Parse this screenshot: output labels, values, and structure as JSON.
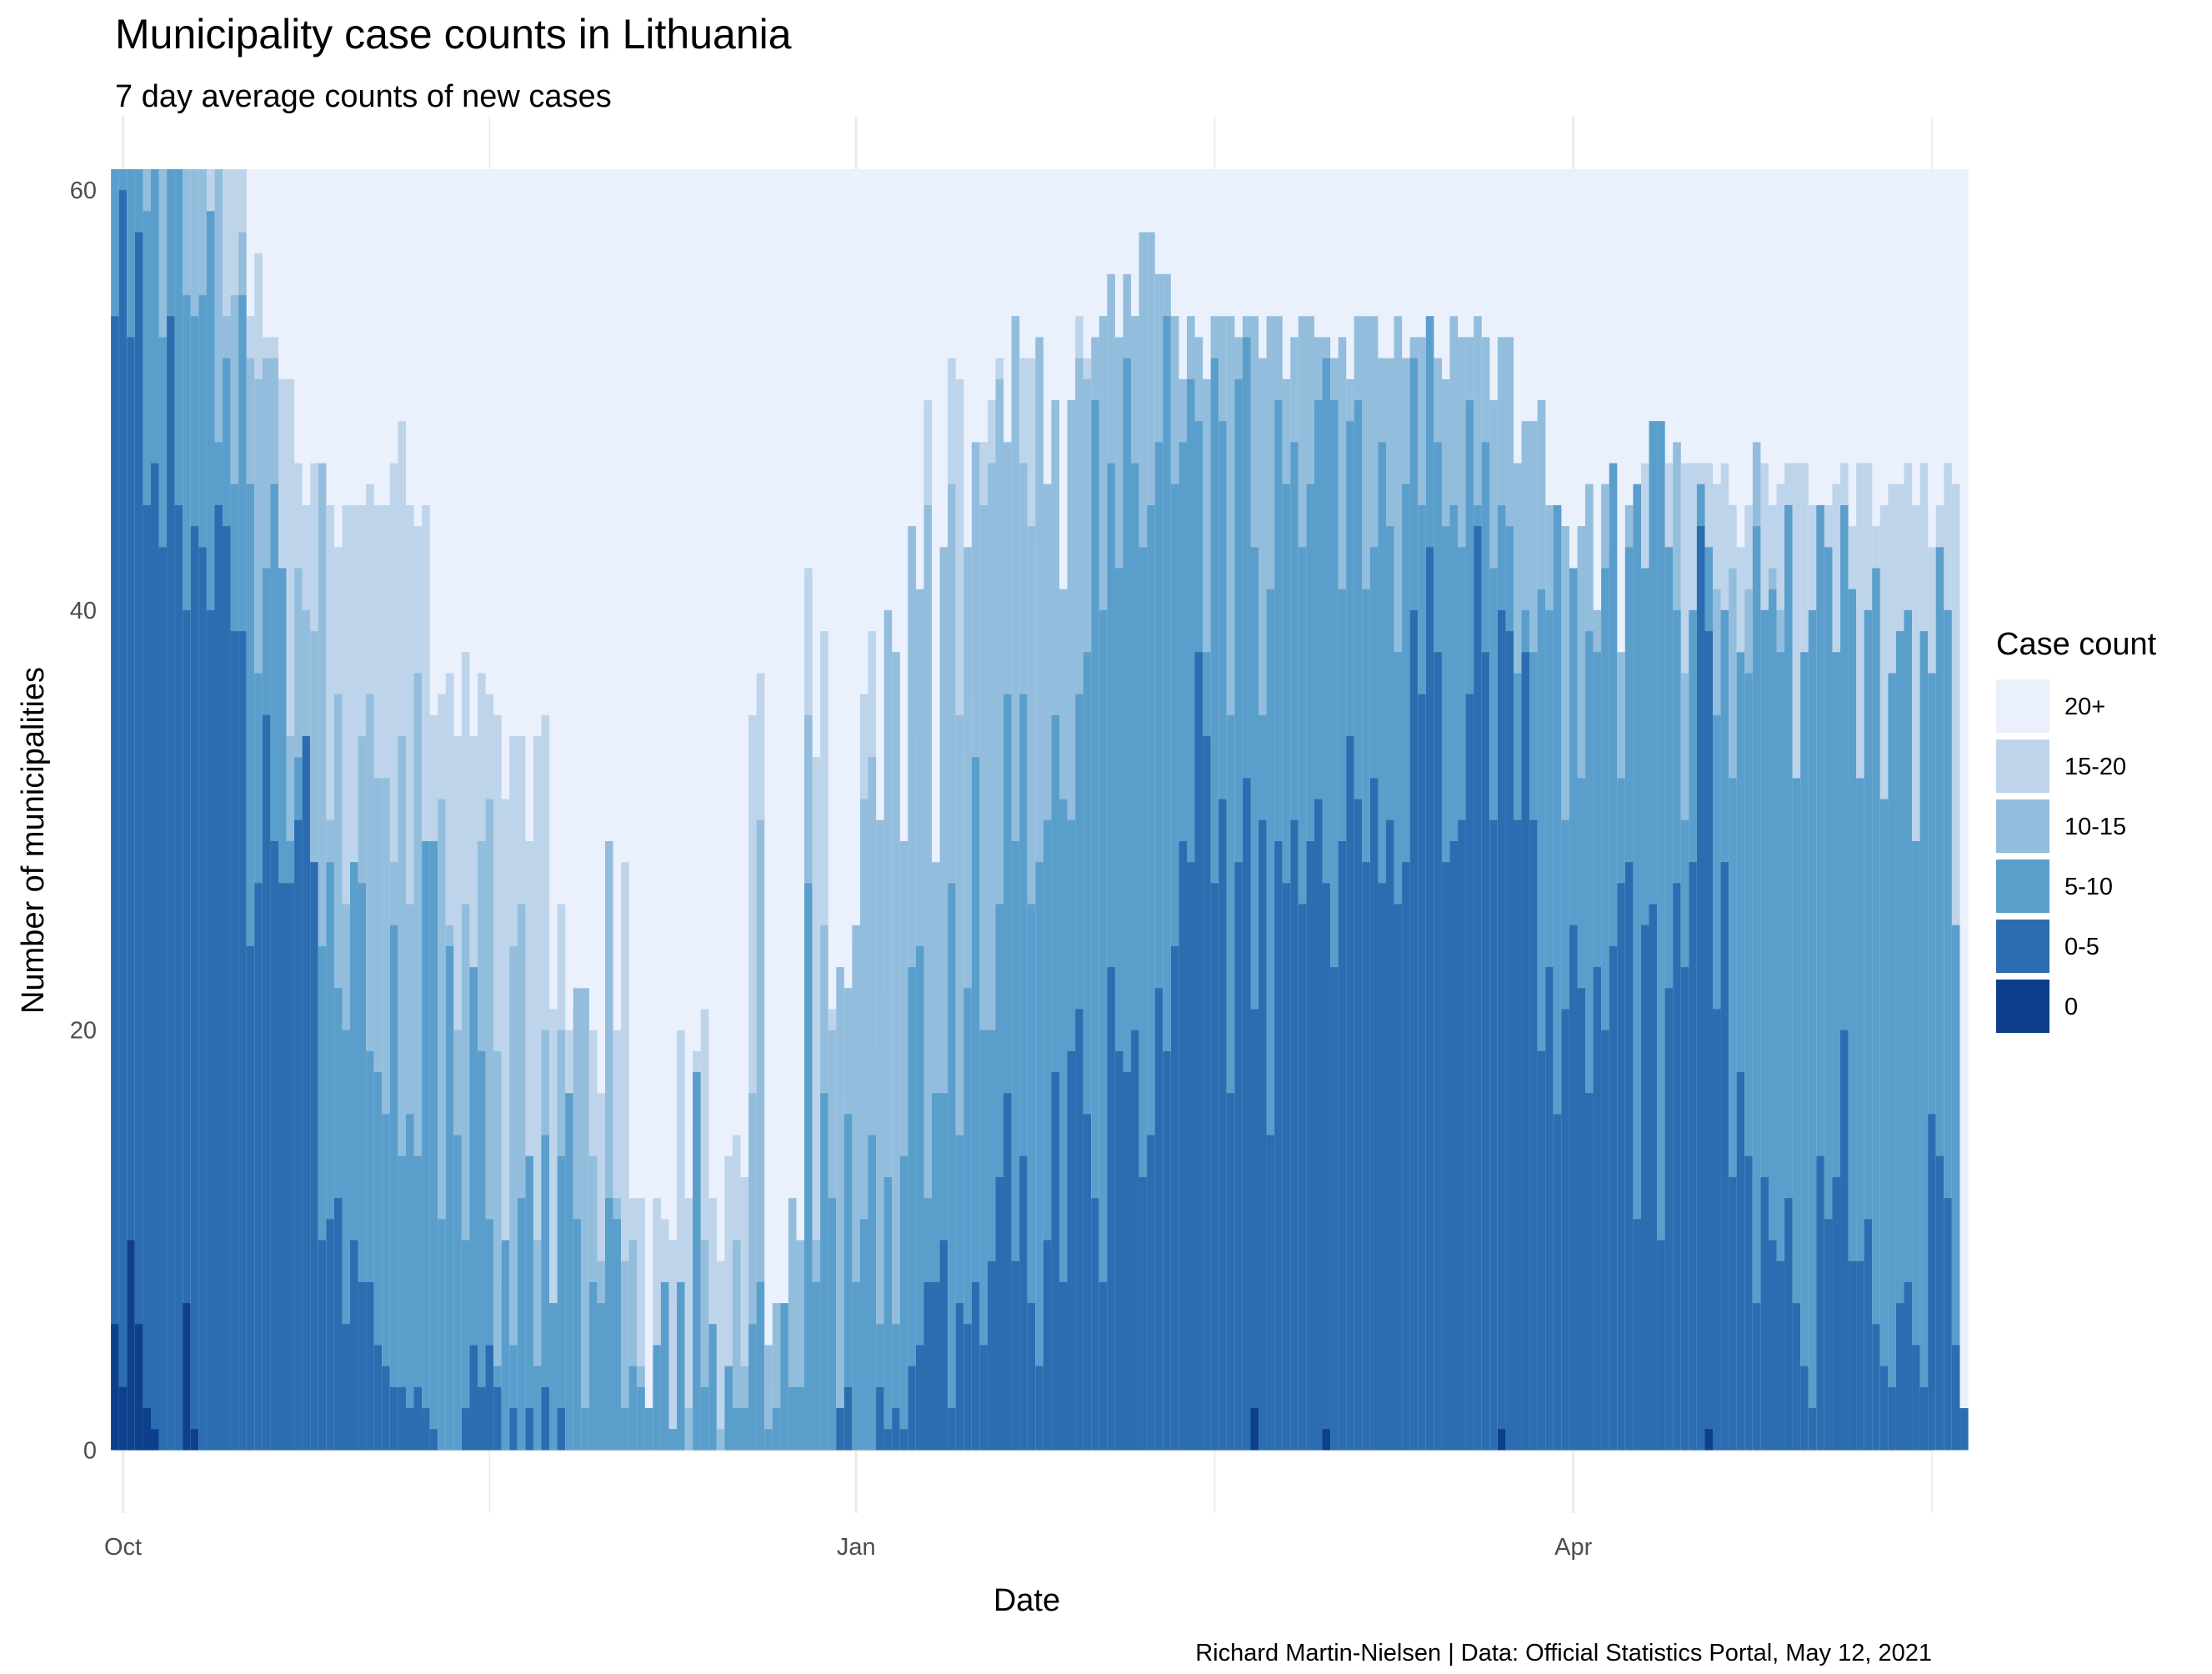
{
  "chart_data": {
    "type": "bar",
    "stacked": true,
    "title": "Municipality case counts in Lithuania",
    "subtitle": "7 day average counts of new cases",
    "xlabel": "Date",
    "ylabel": "Number of municipalities",
    "caption": "Richard Martin-Nielsen | Data: Official Statistics Portal, May 12, 2021",
    "x_range": [
      "2020-09-30",
      "2021-05-16"
    ],
    "x_ticks": [
      {
        "date": "2020-10-01",
        "label": "Oct"
      },
      {
        "date": "2021-01-01",
        "label": "Jan"
      },
      {
        "date": "2021-04-01",
        "label": "Apr"
      }
    ],
    "x_minor_ticks": [
      "2020-11-16",
      "2021-02-15",
      "2021-05-16"
    ],
    "ylim": [
      -3,
      63.5
    ],
    "y_ticks": [
      0,
      20,
      40,
      60
    ],
    "y_minor_ticks": [
      10,
      30,
      50
    ],
    "grid": true,
    "total_municipalities": 61,
    "legend": {
      "title": "Case count",
      "placement": "right",
      "items": [
        {
          "label": "20+",
          "color": "#EAF0FC"
        },
        {
          "label": "15-20",
          "color": "#BDD4EB"
        },
        {
          "label": "10-15",
          "color": "#93BDDC"
        },
        {
          "label": "5-10",
          "color": "#5A9ECC"
        },
        {
          "label": "0-5",
          "color": "#2B6DB0"
        },
        {
          "label": "0",
          "color": "#0D3F8C"
        }
      ]
    },
    "series_note": "cumulative municipality counts per date, stacked from 0 (bottom) to 20+ (top); topmost band fills to 61",
    "first_date": "2020-09-30",
    "day_step": 1,
    "cumulative": {
      "0": [
        6,
        3,
        10,
        6,
        2,
        1,
        0,
        0,
        0,
        7,
        1,
        0,
        0,
        0,
        0,
        0,
        0,
        0,
        0,
        0,
        0,
        0,
        0,
        0,
        0,
        0,
        0,
        0,
        0,
        0,
        0,
        0,
        0,
        0,
        0,
        0,
        0,
        0,
        0,
        0,
        0,
        0,
        0,
        0,
        0,
        0,
        0,
        0,
        0,
        0,
        0,
        0,
        0,
        0,
        0,
        0,
        0,
        0,
        0,
        0,
        0,
        0,
        0,
        0,
        0,
        0,
        0,
        0,
        0,
        0,
        0,
        0,
        0,
        0,
        0,
        0,
        0,
        0,
        0,
        0,
        0,
        0,
        0,
        0,
        0,
        0,
        0,
        0,
        0,
        0,
        0,
        0,
        0,
        0,
        0,
        0,
        0,
        0,
        0,
        0,
        0,
        0,
        0,
        0,
        0,
        0,
        0,
        0,
        0,
        0,
        0,
        0,
        0,
        0,
        0,
        0,
        0,
        0,
        0,
        0,
        0,
        0,
        0,
        0,
        0,
        0,
        0,
        0,
        0,
        0,
        0,
        0,
        0,
        0,
        0,
        0,
        0,
        0,
        0,
        0,
        0,
        0,
        0,
        2,
        0,
        0,
        0,
        0,
        0,
        0,
        0,
        0,
        1,
        0,
        0,
        0,
        0,
        0,
        0,
        0,
        0,
        0,
        0,
        0,
        0,
        0,
        0,
        0,
        0,
        0,
        0,
        0,
        0,
        0,
        1,
        0,
        0,
        0,
        0,
        0,
        0,
        0,
        0,
        0,
        0,
        0,
        0,
        0,
        0,
        0,
        0,
        0,
        0,
        0,
        0,
        0,
        0,
        0,
        0,
        0,
        1,
        0,
        0,
        0,
        0,
        0,
        0,
        0,
        0,
        0,
        0,
        0,
        0,
        0,
        0,
        0,
        0,
        0,
        0,
        0,
        0,
        0,
        0,
        0,
        0,
        0,
        0,
        0,
        0,
        0,
        0,
        0,
        0
      ],
      "0-5": [
        54,
        60,
        53,
        58,
        45,
        47,
        43,
        54,
        45,
        40,
        44,
        43,
        40,
        45,
        44,
        39,
        39,
        24,
        27,
        35,
        29,
        27,
        27,
        30,
        34,
        28,
        10,
        11,
        12,
        6,
        10,
        8,
        8,
        5,
        4,
        3,
        3,
        2,
        3,
        2,
        1,
        0,
        0,
        0,
        2,
        5,
        3,
        5,
        3,
        0,
        2,
        0,
        2,
        0,
        3,
        0,
        2,
        0,
        0,
        0,
        0,
        0,
        0,
        0,
        0,
        0,
        0,
        0,
        0,
        0,
        0,
        0,
        0,
        0,
        0,
        0,
        0,
        0,
        0,
        0,
        0,
        0,
        0,
        0,
        0,
        0,
        0,
        0,
        0,
        0,
        0,
        2,
        3,
        0,
        0,
        0,
        3,
        1,
        2,
        1,
        4,
        5,
        8,
        8,
        10,
        2,
        7,
        6,
        8,
        5,
        9,
        13,
        17,
        9,
        14,
        7,
        4,
        10,
        18,
        8,
        19,
        21,
        16,
        12,
        8,
        23,
        19,
        18,
        20,
        13,
        15,
        22,
        19,
        24,
        29,
        28,
        38,
        34,
        27,
        31,
        17,
        28,
        32,
        21,
        30,
        15,
        29,
        27,
        30,
        26,
        29,
        31,
        27,
        23,
        29,
        34,
        31,
        28,
        32,
        27,
        30,
        26,
        28,
        40,
        36,
        43,
        38,
        28,
        29,
        30,
        36,
        44,
        38,
        30,
        40,
        39,
        30,
        38,
        30,
        19,
        23,
        16,
        21,
        25,
        22,
        17,
        23,
        20,
        24,
        27,
        28,
        11,
        25,
        26,
        10,
        22,
        27,
        23,
        28,
        44,
        39,
        21,
        28,
        13,
        18,
        14,
        7,
        13,
        10,
        9,
        12,
        7,
        4,
        2,
        14,
        11,
        13,
        20,
        9,
        9,
        11,
        6,
        4,
        3,
        7,
        8,
        5,
        3,
        16,
        14,
        12,
        5,
        2
      ],
      "5-10": [
        61,
        61,
        61,
        61,
        59,
        61,
        53,
        61,
        61,
        55,
        54,
        55,
        59,
        48,
        52,
        46,
        55,
        46,
        37,
        42,
        46,
        42,
        29,
        33,
        33,
        28,
        24,
        28,
        22,
        20,
        28,
        27,
        19,
        18,
        16,
        25,
        14,
        16,
        14,
        29,
        29,
        11,
        24,
        15,
        10,
        23,
        19,
        11,
        4,
        10,
        5,
        12,
        14,
        4,
        15,
        7,
        14,
        17,
        11,
        2,
        8,
        7,
        12,
        11,
        2,
        4,
        3,
        2,
        5,
        8,
        1,
        8,
        0,
        18,
        3,
        6,
        0,
        4,
        2,
        2,
        6,
        8,
        1,
        2,
        7,
        3,
        3,
        27,
        8,
        17,
        12,
        2,
        16,
        8,
        11,
        15,
        6,
        13,
        6,
        14,
        23,
        24,
        12,
        17,
        17,
        27,
        15,
        22,
        33,
        20,
        20,
        26,
        36,
        29,
        36,
        26,
        28,
        30,
        35,
        31,
        30,
        36,
        38,
        50,
        40,
        47,
        42,
        52,
        47,
        43,
        45,
        48,
        54,
        46,
        48,
        51,
        49,
        38,
        52,
        49,
        35,
        51,
        53,
        43,
        35,
        41,
        50,
        46,
        48,
        43,
        46,
        50,
        52,
        50,
        41,
        49,
        50,
        41,
        43,
        48,
        44,
        38,
        46,
        52,
        45,
        54,
        48,
        44,
        45,
        43,
        50,
        45,
        48,
        42,
        45,
        44,
        37,
        40,
        38,
        41,
        40,
        45,
        30,
        42,
        32,
        39,
        38,
        42,
        47,
        32,
        43,
        46,
        42,
        49,
        49,
        43,
        40,
        30,
        40,
        46,
        43,
        35,
        40,
        32,
        38,
        37,
        44,
        40,
        41,
        38,
        45,
        32,
        38,
        40,
        45,
        43,
        38,
        45,
        41,
        32,
        40,
        42,
        31,
        37,
        39,
        40,
        29,
        39,
        37,
        43,
        40,
        25
      ],
      "10-15": [
        61,
        61,
        61,
        61,
        61,
        61,
        61,
        61,
        61,
        61,
        61,
        61,
        59,
        61,
        54,
        55,
        58,
        52,
        51,
        52,
        52,
        41,
        34,
        42,
        40,
        39,
        47,
        30,
        36,
        26,
        28,
        34,
        36,
        32,
        32,
        28,
        34,
        26,
        37,
        28,
        22,
        31,
        25,
        20,
        26,
        23,
        29,
        31,
        19,
        8,
        24,
        26,
        12,
        10,
        20,
        7,
        20,
        17,
        22,
        22,
        14,
        9,
        29,
        12,
        9,
        10,
        4,
        0,
        3,
        3,
        1,
        7,
        2,
        15,
        10,
        5,
        1,
        2,
        10,
        4,
        17,
        30,
        5,
        7,
        6,
        12,
        10,
        35,
        10,
        25,
        20,
        23,
        22,
        25,
        31,
        33,
        30,
        40,
        38,
        29,
        44,
        41,
        45,
        28,
        43,
        46,
        35,
        43,
        48,
        45,
        47,
        51,
        48,
        54,
        47,
        44,
        53,
        46,
        50,
        41,
        50,
        52,
        51,
        53,
        54,
        56,
        53,
        56,
        54,
        58,
        58,
        56,
        56,
        54,
        51,
        54,
        53,
        51,
        54,
        54,
        54,
        53,
        54,
        54,
        52,
        54,
        54,
        51,
        53,
        54,
        54,
        53,
        53,
        52,
        53,
        51,
        54,
        54,
        54,
        52,
        52,
        54,
        52,
        53,
        53,
        54,
        52,
        51,
        54,
        53,
        53,
        54,
        53,
        50,
        53,
        53,
        47,
        49,
        49,
        50,
        45,
        45,
        44,
        42,
        44,
        46,
        40,
        46,
        43,
        38,
        45,
        46,
        42,
        49,
        49,
        43,
        48,
        37,
        40,
        46,
        43,
        41,
        40,
        42,
        38,
        41,
        48,
        40,
        42,
        40,
        45,
        32,
        38,
        40,
        45,
        43,
        38,
        45,
        41,
        32,
        40,
        42,
        31,
        37,
        39,
        40,
        29,
        39,
        37,
        43,
        40,
        25
      ],
      "15-20": [
        61,
        61,
        61,
        61,
        61,
        61,
        61,
        61,
        61,
        61,
        61,
        61,
        61,
        61,
        61,
        61,
        61,
        54,
        57,
        53,
        53,
        51,
        51,
        47,
        45,
        47,
        45,
        45,
        43,
        45,
        45,
        45,
        46,
        45,
        45,
        47,
        49,
        45,
        44,
        45,
        35,
        36,
        37,
        34,
        38,
        34,
        37,
        36,
        35,
        31,
        34,
        34,
        29,
        34,
        35,
        21,
        26,
        20,
        21,
        20,
        20,
        17,
        15,
        20,
        28,
        12,
        12,
        0,
        12,
        11,
        10,
        20,
        12,
        19,
        21,
        12,
        9,
        14,
        15,
        13,
        35,
        37,
        4,
        3,
        3,
        2,
        6,
        42,
        33,
        39,
        21,
        21,
        17,
        24,
        36,
        39,
        19,
        22,
        11,
        26,
        44,
        34,
        50,
        20,
        33,
        52,
        51,
        33,
        36,
        48,
        50,
        52,
        46,
        54,
        52,
        52,
        43,
        46,
        50,
        41,
        48,
        54,
        52,
        53,
        54,
        56,
        53,
        56,
        54,
        58,
        58,
        56,
        56,
        54,
        51,
        54,
        53,
        51,
        54,
        54,
        54,
        53,
        54,
        54,
        52,
        54,
        54,
        51,
        53,
        54,
        54,
        53,
        53,
        52,
        53,
        51,
        54,
        54,
        54,
        52,
        52,
        54,
        52,
        53,
        53,
        54,
        52,
        51,
        54,
        53,
        53,
        54,
        53,
        50,
        53,
        53,
        47,
        49,
        49,
        50,
        45,
        45,
        44,
        42,
        44,
        46,
        40,
        46,
        43,
        38,
        45,
        46,
        47,
        49,
        49,
        47,
        48,
        47,
        47,
        47,
        47,
        46,
        47,
        45,
        43,
        45,
        47,
        47,
        45,
        46,
        47,
        47,
        47,
        45,
        45,
        45,
        46,
        47,
        44,
        47,
        47,
        44,
        45,
        46,
        46,
        47,
        45,
        47,
        43,
        45,
        47,
        46
      ]
    }
  }
}
